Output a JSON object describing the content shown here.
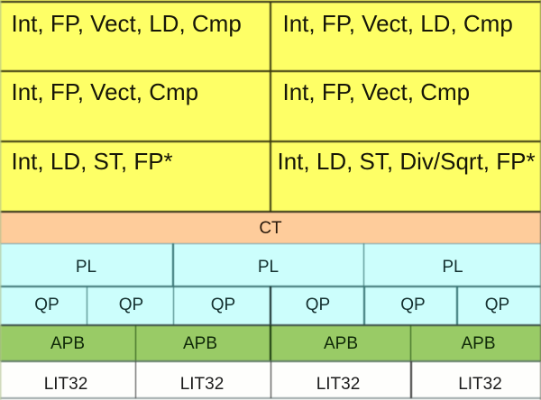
{
  "diagram_title": "execution-pipeline-block-diagram",
  "colors": {
    "execution_units_fill": "#FFFF66",
    "ct_fill": "#FFCC99",
    "pl_qp_fill": "#CCFFFF",
    "apb_fill": "#99CC66",
    "lit32_fill": "#FFFFFF",
    "border": "#222222"
  },
  "exec_rows": [
    {
      "left": "Int, FP, Vect, LD, Cmp",
      "right": "Int, FP, Vect, LD, Cmp"
    },
    {
      "left": "Int, FP, Vect, Cmp",
      "right": "Int, FP, Vect, Cmp"
    },
    {
      "left": "Int, LD, ST, FP*",
      "right": "Int, LD, ST, Div/Sqrt, FP*"
    }
  ],
  "ct_row": {
    "label": "CT"
  },
  "pl_row": {
    "labels": [
      "PL",
      "PL",
      "PL"
    ]
  },
  "qp_row": {
    "labels": [
      "QP",
      "QP",
      "QP",
      "QP",
      "QP",
      "QP"
    ]
  },
  "apb_row": {
    "labels": [
      "APB",
      "APB",
      "APB",
      "APB"
    ]
  },
  "lit_row": {
    "labels": [
      "LIT32",
      "LIT32",
      "LIT32",
      "LIT32"
    ]
  }
}
